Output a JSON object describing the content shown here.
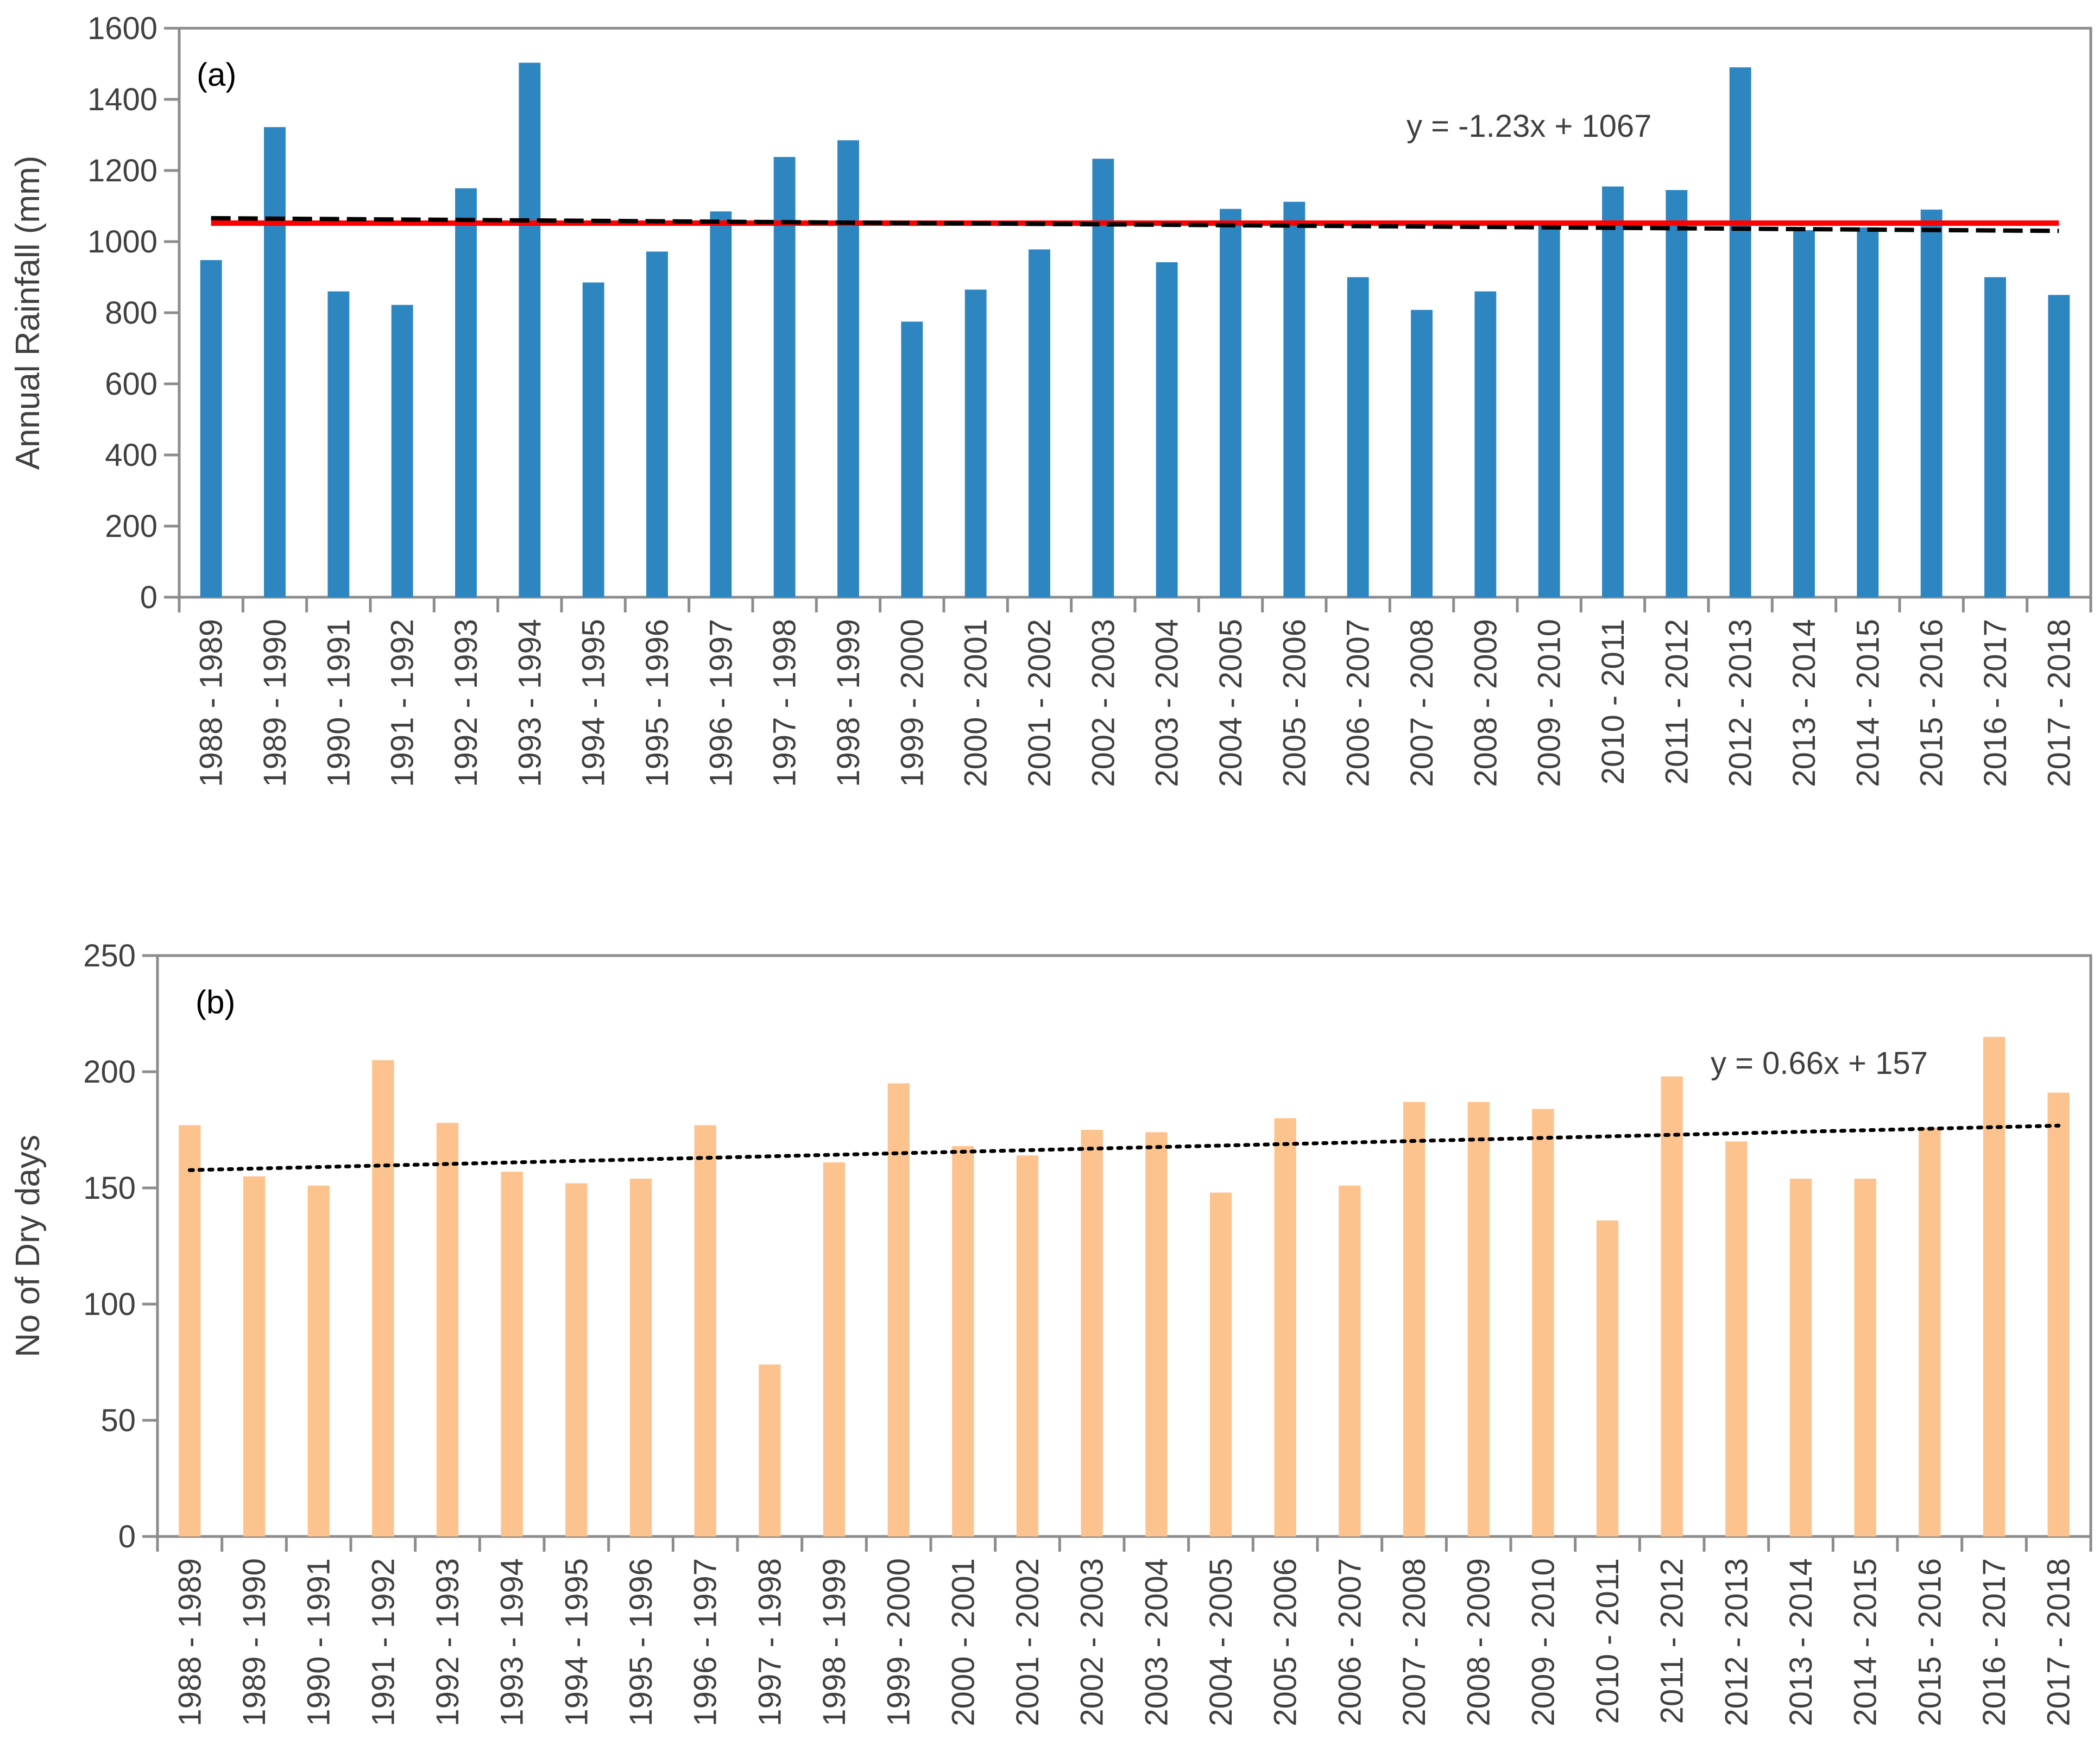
{
  "chart_data": [
    {
      "type": "bar",
      "panel_label": "(a)",
      "ylabel": "Annual Rainfall (mm)",
      "xlabel": "",
      "ylim": [
        0,
        1600
      ],
      "yticks": [
        "0",
        "200",
        "400",
        "600",
        "800",
        "1000",
        "1200",
        "1400",
        "1600"
      ],
      "categories": [
        "1988 - 1989",
        "1989 - 1990",
        "1990 - 1991",
        "1991 - 1992",
        "1992 - 1993",
        "1993 - 1994",
        "1994 - 1995",
        "1995 - 1996",
        "1996 - 1997",
        "1997 - 1998",
        "1998 - 1999",
        "1999 - 2000",
        "2000 - 2001",
        "2001 - 2002",
        "2002 - 2003",
        "2003 - 2004",
        "2004 - 2005",
        "2005 - 2006",
        "2006 - 2007",
        "2007 - 2008",
        "2008 - 2009",
        "2009 - 2010",
        "2010 - 2011",
        "2011 - 2012",
        "2012 - 2013",
        "2013 - 2014",
        "2014 - 2015",
        "2015 - 2016",
        "2016 - 2017",
        "2017 - 2018"
      ],
      "values": [
        948,
        1322,
        860,
        822,
        1150,
        1503,
        885,
        972,
        1085,
        1238,
        1285,
        775,
        865,
        978,
        1233,
        942,
        1092,
        1112,
        900,
        808,
        860,
        1045,
        1155,
        1145,
        1490,
        1032,
        1040,
        1090,
        900,
        850
      ],
      "bar_color": "#2e86c1",
      "mean_line": {
        "value": 1052,
        "color": "#ff0000"
      },
      "trendline": {
        "slope": -1.23,
        "intercept": 1067,
        "style": "dashed",
        "color": "#000000",
        "equation": "y = -1.23x + 1067"
      },
      "grid": false
    },
    {
      "type": "bar",
      "panel_label": "(b)",
      "ylabel": "No of Dry days",
      "xlabel": "",
      "ylim": [
        0,
        250
      ],
      "yticks": [
        "0",
        "50",
        "100",
        "150",
        "200",
        "250"
      ],
      "categories": [
        "1988 - 1989",
        "1989 - 1990",
        "1990 - 1991",
        "1991 - 1992",
        "1992 - 1993",
        "1993 - 1994",
        "1994 - 1995",
        "1995 - 1996",
        "1996 - 1997",
        "1997 - 1998",
        "1998 - 1999",
        "1999 - 2000",
        "2000 - 2001",
        "2001 - 2002",
        "2002 - 2003",
        "2003 - 2004",
        "2004 - 2005",
        "2005 - 2006",
        "2006 - 2007",
        "2007 - 2008",
        "2008 - 2009",
        "2009 - 2010",
        "2010 - 2011",
        "2011 - 2012",
        "2012 - 2013",
        "2013 - 2014",
        "2014 - 2015",
        "2015 - 2016",
        "2016 - 2017",
        "2017 - 2018"
      ],
      "values": [
        177,
        155,
        151,
        205,
        178,
        157,
        152,
        154,
        177,
        74,
        161,
        195,
        168,
        164,
        175,
        174,
        148,
        180,
        151,
        187,
        187,
        184,
        136,
        198,
        170,
        154,
        154,
        176,
        215,
        191
      ],
      "bar_color": "#fdc38f",
      "trendline": {
        "slope": 0.66,
        "intercept": 157,
        "style": "dotted",
        "color": "#000000",
        "equation": "y = 0.66x + 157"
      },
      "grid": false
    }
  ]
}
